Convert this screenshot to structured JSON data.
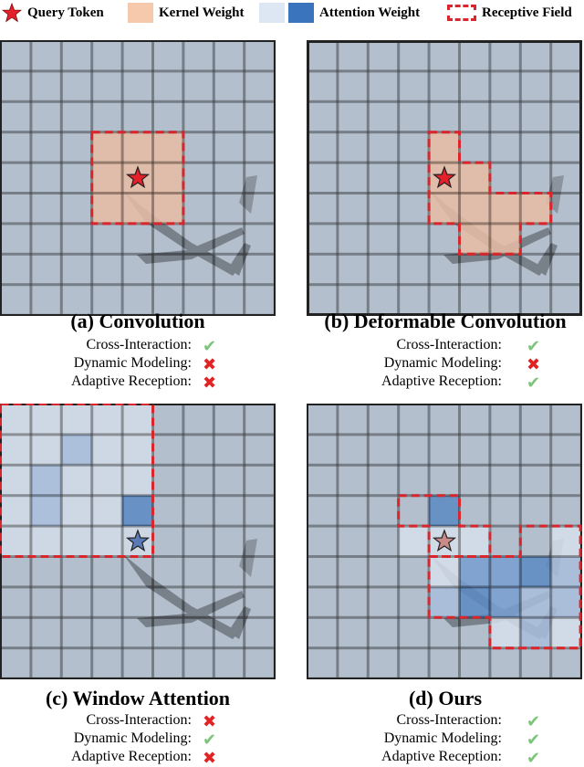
{
  "legend": {
    "query_token": "Query Token",
    "kernel_weight": "Kernel Weight",
    "attention_weight": "Attention Weight",
    "receptive_field": "Receptive Field"
  },
  "colors": {
    "star_red": "#e4202a",
    "star_pink": "#c98a8a",
    "star_blue": "#5a7bb5",
    "kernel_fill": "#f2b894",
    "attn_light": "#dde6f3",
    "attn_strong": "#3a74bd",
    "receptive_border": "#d9262c",
    "sky": "#aebbcb",
    "cell": "#c5ccd6",
    "grid_line": "#333333"
  },
  "criteria": [
    "Cross-Interaction:",
    "Dynamic Modeling:",
    "Adaptive Reception:"
  ],
  "panels": [
    {
      "title": "(a) Convolution",
      "marks": [
        "check",
        "cross",
        "cross"
      ]
    },
    {
      "title": "(b) Deformable Convolution",
      "marks": [
        "check",
        "cross",
        "check"
      ]
    },
    {
      "title": "(c) Window Attention",
      "marks": [
        "cross",
        "check",
        "cross"
      ]
    },
    {
      "title": "(d) Ours",
      "marks": [
        "check",
        "check",
        "check"
      ]
    }
  ]
}
